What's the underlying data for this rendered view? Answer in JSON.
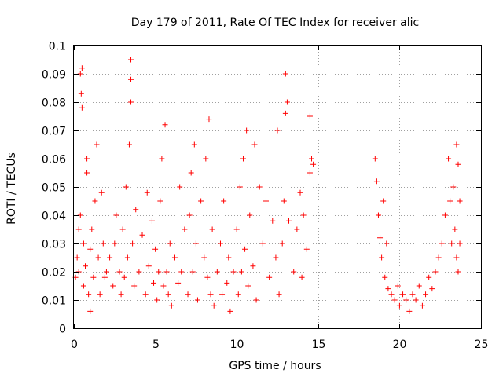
{
  "chart_data": {
    "type": "scatter",
    "title": "Day 179 of 2011, Rate Of TEC Index for receiver alic",
    "xlabel": "GPS time / hours",
    "ylabel": "ROTI / TECUs",
    "xlim": [
      0,
      25
    ],
    "ylim": [
      0,
      0.1
    ],
    "x_ticks": [
      0,
      5,
      10,
      15,
      20,
      25
    ],
    "x_tick_labels": [
      "0",
      "5",
      "10",
      "15",
      "20",
      "25"
    ],
    "y_ticks": [
      0,
      0.01,
      0.02,
      0.03,
      0.04,
      0.05,
      0.06,
      0.07,
      0.08,
      0.09,
      0.1
    ],
    "y_tick_labels": [
      "0",
      "0.01",
      "0.02",
      "0.03",
      "0.04",
      "0.05",
      "0.06",
      "0.07",
      "0.08",
      "0.09",
      "0.1"
    ],
    "grid": true,
    "marker": "+",
    "colors": {
      "series": "#ff0000",
      "grid": "#a0a0a0"
    },
    "series": [
      {
        "points": [
          [
            0.1,
            0.018
          ],
          [
            0.2,
            0.025
          ],
          [
            0.3,
            0.035
          ],
          [
            0.3,
            0.02
          ],
          [
            0.4,
            0.04
          ],
          [
            0.4,
            0.09
          ],
          [
            0.45,
            0.083
          ],
          [
            0.5,
            0.092
          ],
          [
            0.5,
            0.078
          ],
          [
            0.6,
            0.03
          ],
          [
            0.6,
            0.015
          ],
          [
            0.7,
            0.022
          ],
          [
            0.8,
            0.055
          ],
          [
            0.8,
            0.06
          ],
          [
            0.9,
            0.012
          ],
          [
            1.0,
            0.028
          ],
          [
            1.0,
            0.006
          ],
          [
            1.1,
            0.035
          ],
          [
            1.2,
            0.018
          ],
          [
            1.3,
            0.045
          ],
          [
            1.4,
            0.065
          ],
          [
            1.5,
            0.025
          ],
          [
            1.6,
            0.012
          ],
          [
            1.7,
            0.048
          ],
          [
            1.8,
            0.03
          ],
          [
            1.9,
            0.018
          ],
          [
            2.0,
            0.02
          ],
          [
            2.2,
            0.025
          ],
          [
            2.4,
            0.015
          ],
          [
            2.5,
            0.03
          ],
          [
            2.6,
            0.04
          ],
          [
            2.8,
            0.02
          ],
          [
            2.9,
            0.012
          ],
          [
            3.0,
            0.035
          ],
          [
            3.1,
            0.018
          ],
          [
            3.2,
            0.05
          ],
          [
            3.3,
            0.025
          ],
          [
            3.4,
            0.065
          ],
          [
            3.5,
            0.08
          ],
          [
            3.5,
            0.088
          ],
          [
            3.5,
            0.095
          ],
          [
            3.6,
            0.03
          ],
          [
            3.7,
            0.015
          ],
          [
            3.8,
            0.042
          ],
          [
            4.0,
            0.02
          ],
          [
            4.2,
            0.033
          ],
          [
            4.4,
            0.012
          ],
          [
            4.5,
            0.048
          ],
          [
            4.6,
            0.022
          ],
          [
            4.8,
            0.038
          ],
          [
            4.9,
            0.016
          ],
          [
            5.0,
            0.028
          ],
          [
            5.1,
            0.01
          ],
          [
            5.2,
            0.02
          ],
          [
            5.3,
            0.045
          ],
          [
            5.4,
            0.06
          ],
          [
            5.5,
            0.015
          ],
          [
            5.6,
            0.072
          ],
          [
            5.7,
            0.02
          ],
          [
            5.8,
            0.012
          ],
          [
            5.9,
            0.03
          ],
          [
            6.0,
            0.008
          ],
          [
            6.2,
            0.025
          ],
          [
            6.4,
            0.016
          ],
          [
            6.5,
            0.05
          ],
          [
            6.6,
            0.02
          ],
          [
            6.8,
            0.035
          ],
          [
            7.0,
            0.012
          ],
          [
            7.1,
            0.04
          ],
          [
            7.2,
            0.055
          ],
          [
            7.3,
            0.02
          ],
          [
            7.4,
            0.065
          ],
          [
            7.5,
            0.03
          ],
          [
            7.6,
            0.01
          ],
          [
            7.8,
            0.045
          ],
          [
            8.0,
            0.025
          ],
          [
            8.1,
            0.06
          ],
          [
            8.2,
            0.018
          ],
          [
            8.3,
            0.074
          ],
          [
            8.4,
            0.012
          ],
          [
            8.5,
            0.035
          ],
          [
            8.6,
            0.008
          ],
          [
            8.8,
            0.02
          ],
          [
            9.0,
            0.03
          ],
          [
            9.1,
            0.012
          ],
          [
            9.2,
            0.045
          ],
          [
            9.4,
            0.016
          ],
          [
            9.5,
            0.025
          ],
          [
            9.6,
            0.006
          ],
          [
            9.8,
            0.02
          ],
          [
            10.0,
            0.035
          ],
          [
            10.1,
            0.012
          ],
          [
            10.2,
            0.05
          ],
          [
            10.3,
            0.02
          ],
          [
            10.4,
            0.06
          ],
          [
            10.5,
            0.028
          ],
          [
            10.6,
            0.07
          ],
          [
            10.7,
            0.015
          ],
          [
            10.8,
            0.04
          ],
          [
            11.0,
            0.022
          ],
          [
            11.1,
            0.065
          ],
          [
            11.2,
            0.01
          ],
          [
            11.4,
            0.05
          ],
          [
            11.6,
            0.03
          ],
          [
            11.8,
            0.045
          ],
          [
            12.0,
            0.018
          ],
          [
            12.2,
            0.038
          ],
          [
            12.4,
            0.025
          ],
          [
            12.5,
            0.07
          ],
          [
            12.6,
            0.012
          ],
          [
            12.8,
            0.03
          ],
          [
            12.9,
            0.045
          ],
          [
            13.0,
            0.09
          ],
          [
            13.0,
            0.076
          ],
          [
            13.1,
            0.08
          ],
          [
            13.2,
            0.038
          ],
          [
            13.5,
            0.02
          ],
          [
            13.7,
            0.035
          ],
          [
            13.9,
            0.048
          ],
          [
            14.0,
            0.018
          ],
          [
            14.1,
            0.04
          ],
          [
            14.3,
            0.028
          ],
          [
            14.5,
            0.055
          ],
          [
            14.5,
            0.075
          ],
          [
            14.6,
            0.06
          ],
          [
            14.7,
            0.058
          ],
          [
            18.5,
            0.06
          ],
          [
            18.6,
            0.052
          ],
          [
            18.7,
            0.04
          ],
          [
            18.8,
            0.032
          ],
          [
            18.9,
            0.025
          ],
          [
            19.0,
            0.045
          ],
          [
            19.1,
            0.018
          ],
          [
            19.2,
            0.03
          ],
          [
            19.3,
            0.014
          ],
          [
            19.5,
            0.012
          ],
          [
            19.7,
            0.01
          ],
          [
            19.9,
            0.015
          ],
          [
            20.0,
            0.008
          ],
          [
            20.2,
            0.012
          ],
          [
            20.4,
            0.01
          ],
          [
            20.6,
            0.006
          ],
          [
            20.8,
            0.012
          ],
          [
            21.0,
            0.01
          ],
          [
            21.2,
            0.015
          ],
          [
            21.4,
            0.008
          ],
          [
            21.6,
            0.012
          ],
          [
            21.8,
            0.018
          ],
          [
            22.0,
            0.014
          ],
          [
            22.2,
            0.02
          ],
          [
            22.4,
            0.025
          ],
          [
            22.6,
            0.03
          ],
          [
            22.8,
            0.04
          ],
          [
            23.0,
            0.06
          ],
          [
            23.1,
            0.045
          ],
          [
            23.2,
            0.03
          ],
          [
            23.3,
            0.05
          ],
          [
            23.4,
            0.035
          ],
          [
            23.5,
            0.065
          ],
          [
            23.5,
            0.025
          ],
          [
            23.6,
            0.02
          ],
          [
            23.6,
            0.058
          ],
          [
            23.7,
            0.03
          ],
          [
            23.7,
            0.045
          ]
        ]
      }
    ]
  }
}
